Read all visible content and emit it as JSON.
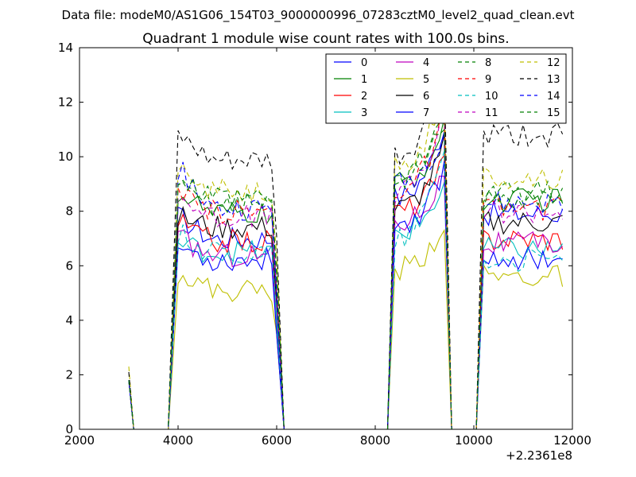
{
  "figure": {
    "suptitle": "Data file: modeM0/AS1G06_154T03_9000000996_07283cztM0_level2_quad_clean.evt"
  },
  "chart_data": {
    "type": "line",
    "title": "Quadrant 1 module wise count rates with 100.0s bins.",
    "xlabel": "",
    "ylabel": "",
    "x_offset_label": "+2.2361e8",
    "xlim": [
      2000,
      12000
    ],
    "ylim": [
      0,
      14
    ],
    "xticks": [
      2000,
      4000,
      6000,
      8000,
      10000,
      12000
    ],
    "yticks": [
      0,
      2,
      4,
      6,
      8,
      10,
      12,
      14
    ],
    "grid": false,
    "legend_placement": "top-right",
    "segments": [
      {
        "x_start": 3000,
        "x_end": 3000,
        "x_zero_end": 3100
      },
      {
        "x_zero_start": 3800,
        "x_start": 4000,
        "x_end": 6000,
        "x_zero_end": 6150
      },
      {
        "x_zero_start": 8250,
        "x_start": 8400,
        "x_end": 9400,
        "x_zero_end": 9550
      },
      {
        "x_zero_start": 10050,
        "x_start": 10200,
        "x_end": 11750
      }
    ],
    "series": [
      {
        "name": "0",
        "color": "#0000ff",
        "dash": "solid",
        "start": 1.8,
        "levels": [
          7.8,
          7.0,
          8.5,
          11.2,
          7.9
        ]
      },
      {
        "name": "1",
        "color": "#008000",
        "dash": "solid",
        "start": 1.8,
        "levels": [
          8.7,
          7.9,
          9.0,
          11.0,
          8.4
        ]
      },
      {
        "name": "2",
        "color": "#ff0000",
        "dash": "solid",
        "start": 1.8,
        "levels": [
          7.6,
          6.9,
          8.0,
          9.8,
          7.0
        ]
      },
      {
        "name": "3",
        "color": "#00bfbf",
        "dash": "solid",
        "start": 1.8,
        "levels": [
          6.8,
          6.5,
          7.2,
          9.0,
          6.6
        ]
      },
      {
        "name": "4",
        "color": "#bf00bf",
        "dash": "solid",
        "start": 1.8,
        "levels": [
          7.0,
          6.4,
          7.6,
          9.4,
          6.8
        ]
      },
      {
        "name": "5",
        "color": "#bfbf00",
        "dash": "solid",
        "start": 1.8,
        "levels": [
          5.8,
          5.1,
          5.9,
          7.6,
          5.6
        ]
      },
      {
        "name": "6",
        "color": "#000000",
        "dash": "solid",
        "start": 1.8,
        "levels": [
          7.8,
          7.4,
          8.1,
          10.4,
          7.6
        ]
      },
      {
        "name": "7",
        "color": "#0000ff",
        "dash": "solid",
        "start": 1.8,
        "levels": [
          6.7,
          6.2,
          7.5,
          9.6,
          6.3
        ]
      },
      {
        "name": "8",
        "color": "#008000",
        "dash": "dashed",
        "start": 1.8,
        "levels": [
          8.8,
          8.3,
          9.2,
          11.8,
          8.7
        ]
      },
      {
        "name": "9",
        "color": "#ff0000",
        "dash": "dashed",
        "start": 1.8,
        "levels": [
          8.5,
          8.0,
          8.8,
          11.4,
          8.1
        ]
      },
      {
        "name": "10",
        "color": "#00bfbf",
        "dash": "dashed",
        "start": 1.8,
        "levels": [
          7.2,
          6.5,
          7.0,
          10.5,
          6.2
        ]
      },
      {
        "name": "11",
        "color": "#bf00bf",
        "dash": "dashed",
        "start": 1.8,
        "levels": [
          8.6,
          7.8,
          8.7,
          11.5,
          8.0
        ]
      },
      {
        "name": "12",
        "color": "#bfbf00",
        "dash": "dashed",
        "start": 2.3,
        "levels": [
          9.4,
          8.8,
          9.6,
          12.5,
          9.2
        ]
      },
      {
        "name": "13",
        "color": "#000000",
        "dash": "dashed",
        "start": 2.1,
        "levels": [
          10.7,
          9.8,
          10.0,
          13.2,
          10.8
        ]
      },
      {
        "name": "14",
        "color": "#0000ff",
        "dash": "dashed",
        "start": 1.8,
        "levels": [
          9.6,
          8.1,
          9.0,
          11.0,
          8.3
        ]
      },
      {
        "name": "15",
        "color": "#008000",
        "dash": "dashed",
        "start": 1.8,
        "levels": [
          9.2,
          8.4,
          9.1,
          11.3,
          8.5
        ]
      }
    ]
  }
}
